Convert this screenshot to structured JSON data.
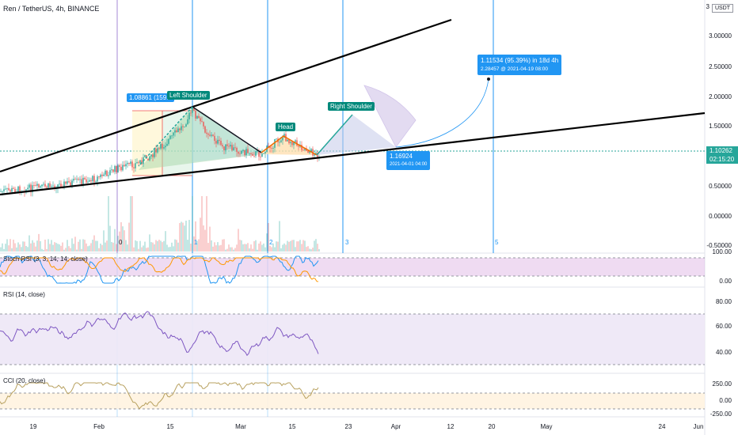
{
  "header": {
    "symbol_title": "Ren / TetherUS, 4h, BINANCE"
  },
  "price_axis": {
    "currency_button": "USDT",
    "labels": [
      "3",
      "3.00000",
      "2.50000",
      "2.00000",
      "1.50000",
      "1.00000",
      "0.50000",
      "0.00000",
      "-0.50000"
    ],
    "current_price": "1.10262",
    "countdown": "02:15:20"
  },
  "time_axis": {
    "labels": [
      "19",
      "Feb",
      "15",
      "Mar",
      "15",
      "23",
      "Apr",
      "12",
      "20",
      "May",
      "24",
      "Jun"
    ]
  },
  "annotations": {
    "left_shoulder": "Left Shoulder",
    "left_shoulder_price": "1.08861 (159.6",
    "head": "Head",
    "right_shoulder": "Right Shoulder",
    "target_line1": "1.11534 (95.39%) in 18d 4h",
    "target_line2": "2.28457 @ 2021-04-19  08:00",
    "support_price": "1.16924",
    "support_date": "2021-04-01  04:00"
  },
  "cycle_counts": [
    "0",
    "1",
    "2",
    "3",
    "5"
  ],
  "indicators": {
    "stoch": {
      "title": "Stoch RSI (3, 3, 14, 14, close)",
      "levels": [
        "100.00",
        "0.00"
      ]
    },
    "rsi": {
      "title": "RSI (14, close)",
      "levels": [
        "80.00",
        "60.00",
        "40.00"
      ]
    },
    "cci": {
      "title": "CCI (20, close)",
      "levels": [
        "250.00",
        "0.00",
        "-250.00"
      ]
    }
  },
  "colors": {
    "up": "#26a69a",
    "down": "#ef5350",
    "accent": "#2196f3",
    "purple": "#b39ddb",
    "trend": "#000000"
  }
}
